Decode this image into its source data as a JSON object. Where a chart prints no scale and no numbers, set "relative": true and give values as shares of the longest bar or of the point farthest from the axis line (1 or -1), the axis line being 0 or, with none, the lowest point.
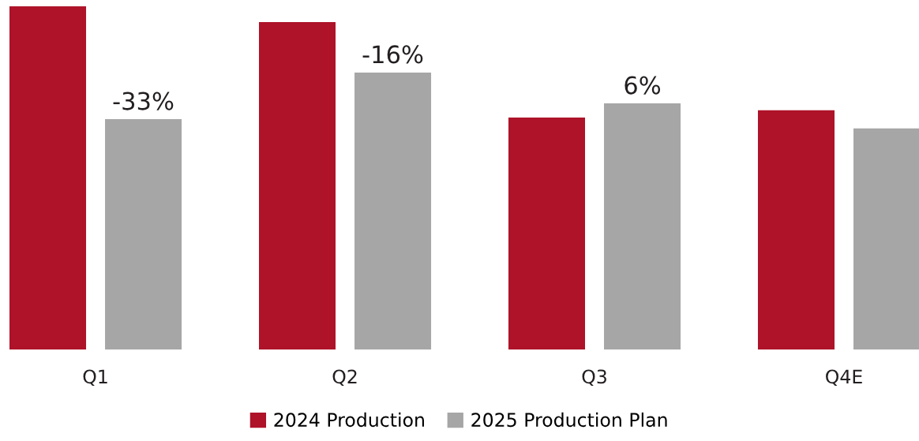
{
  "chart_data": {
    "type": "bar",
    "relative": true,
    "categories": [
      "Q1",
      "Q2",
      "Q3",
      "Q4E"
    ],
    "series": [
      {
        "name": "2024 Production",
        "color": "#ae1329",
        "values": [
          1.0,
          0.954,
          0.676,
          0.697
        ]
      },
      {
        "name": "2025 Production Plan",
        "color": "#a6a6a6",
        "values": [
          0.671,
          0.807,
          0.717,
          0.644
        ]
      }
    ],
    "annotations": [
      "-33%",
      "-16%",
      "6%"
    ],
    "legend": "bottom",
    "grid": false
  }
}
